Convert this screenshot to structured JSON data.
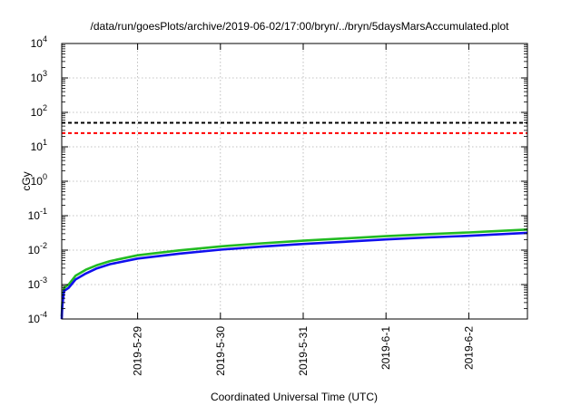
{
  "chart_data": {
    "type": "line",
    "title": "/data/run/goesPlots/archive/2019-06-02/17:00/bryn/../bryn/5daysMarsAccumulated.plot",
    "xlabel": "Coordinated Universal Time (UTC)",
    "ylabel": "cGy",
    "y_scale": "log",
    "ylim": [
      0.0001,
      10000
    ],
    "y_ticks": [
      {
        "value": 0.0001,
        "base": "10",
        "exp": "-4"
      },
      {
        "value": 0.001,
        "base": "10",
        "exp": "-3"
      },
      {
        "value": 0.01,
        "base": "10",
        "exp": "-2"
      },
      {
        "value": 0.1,
        "base": "10",
        "exp": "-1"
      },
      {
        "value": 1,
        "base": "10",
        "exp": "0"
      },
      {
        "value": 10,
        "base": "10",
        "exp": "1"
      },
      {
        "value": 100,
        "base": "10",
        "exp": "2"
      },
      {
        "value": 1000,
        "base": "10",
        "exp": "3"
      },
      {
        "value": 10000,
        "base": "10",
        "exp": "4"
      }
    ],
    "xlim": [
      "2019-05-28T02:00",
      "2019-06-02T17:00"
    ],
    "x_ticks": [
      "2019-5-29",
      "2019-5-30",
      "2019-5-31",
      "2019-6-1",
      "2019-6-2"
    ],
    "grid": true,
    "reference_lines": [
      {
        "value": 50,
        "color": "#000000",
        "style": "dashed"
      },
      {
        "value": 25,
        "color": "#ff0000",
        "style": "dashed"
      }
    ],
    "series": [
      {
        "color": "#22bb22",
        "x": [
          "2019-05-28T02:00",
          "2019-05-28T02:10",
          "2019-05-28T02:40",
          "2019-05-28T04:00",
          "2019-05-28T06:00",
          "2019-05-28T09:00",
          "2019-05-28T12:00",
          "2019-05-28T16:00",
          "2019-05-29T00:00",
          "2019-05-29T12:00",
          "2019-05-30T00:00",
          "2019-05-30T12:00",
          "2019-05-31T00:00",
          "2019-05-31T12:00",
          "2019-06-01T00:00",
          "2019-06-01T12:00",
          "2019-06-02T00:00",
          "2019-06-02T17:00"
        ],
        "values": [
          0.00012,
          0.0003,
          0.0008,
          0.001,
          0.0018,
          0.0027,
          0.0036,
          0.0048,
          0.0071,
          0.0098,
          0.0128,
          0.0158,
          0.0188,
          0.0218,
          0.0255,
          0.029,
          0.0325,
          0.0395
        ]
      },
      {
        "color": "#1010ee",
        "x": [
          "2019-05-28T02:00",
          "2019-05-28T02:10",
          "2019-05-28T02:40",
          "2019-05-28T04:00",
          "2019-05-28T06:00",
          "2019-05-28T09:00",
          "2019-05-28T12:00",
          "2019-05-28T16:00",
          "2019-05-29T00:00",
          "2019-05-29T12:00",
          "2019-05-30T00:00",
          "2019-05-30T12:00",
          "2019-05-31T00:00",
          "2019-05-31T12:00",
          "2019-06-01T00:00",
          "2019-06-01T12:00",
          "2019-06-02T00:00",
          "2019-06-02T17:00"
        ],
        "values": [
          0.0001,
          0.00024,
          0.00065,
          0.0008,
          0.0014,
          0.0021,
          0.0029,
          0.0039,
          0.0057,
          0.0079,
          0.0103,
          0.0127,
          0.0151,
          0.0175,
          0.0205,
          0.0233,
          0.0261,
          0.0318
        ]
      }
    ]
  }
}
